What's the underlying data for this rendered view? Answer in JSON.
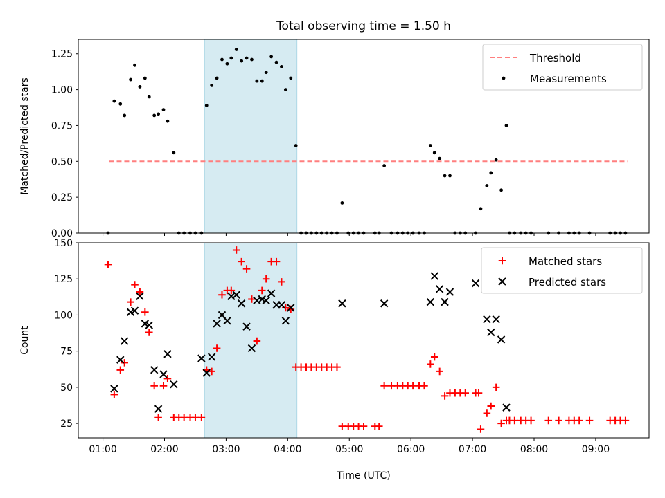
{
  "colors": {
    "shade": "#add8e6",
    "threshold": "#ff7f7f",
    "measurement": "#000000",
    "matched": "#ff0000",
    "predicted": "#000000"
  },
  "chart_data": [
    {
      "type": "scatter",
      "title": "Total observing time = 1.50 h",
      "xlabel": "",
      "ylabel": "Matched/Predicted stars",
      "xlim": [
        "00:36",
        "09:52"
      ],
      "ylim": [
        0,
        1.35
      ],
      "yticks": [
        0.0,
        0.25,
        0.5,
        0.75,
        1.0,
        1.25
      ],
      "ytick_labels": [
        "0.00",
        "0.25",
        "0.50",
        "0.75",
        "1.00",
        "1.25"
      ],
      "shaded_span": [
        "02:39",
        "04:09"
      ],
      "threshold": {
        "name": "Threshold",
        "value": 0.5,
        "x": [
          "01:06",
          "09:31"
        ]
      },
      "legend": {
        "position": "top-right",
        "entries": [
          "Threshold",
          "Measurements"
        ]
      },
      "series": [
        {
          "name": "Measurements",
          "marker": "dot",
          "points": [
            [
              "01:05",
              0.0
            ],
            [
              "01:11",
              0.92
            ],
            [
              "01:17",
              0.9
            ],
            [
              "01:21",
              0.82
            ],
            [
              "01:27",
              1.07
            ],
            [
              "01:31",
              1.17
            ],
            [
              "01:36",
              1.02
            ],
            [
              "01:41",
              1.08
            ],
            [
              "01:45",
              0.95
            ],
            [
              "01:50",
              0.82
            ],
            [
              "01:54",
              0.83
            ],
            [
              "01:59",
              0.86
            ],
            [
              "02:03",
              0.78
            ],
            [
              "02:09",
              0.56
            ],
            [
              "02:14",
              0.0
            ],
            [
              "02:19",
              0.0
            ],
            [
              "02:25",
              0.0
            ],
            [
              "02:30",
              0.0
            ],
            [
              "02:36",
              0.0
            ],
            [
              "02:41",
              0.89
            ],
            [
              "02:46",
              1.03
            ],
            [
              "02:51",
              1.08
            ],
            [
              "02:56",
              1.21
            ],
            [
              "03:01",
              1.18
            ],
            [
              "03:05",
              1.22
            ],
            [
              "03:10",
              1.28
            ],
            [
              "03:15",
              1.2
            ],
            [
              "03:20",
              1.22
            ],
            [
              "03:25",
              1.21
            ],
            [
              "03:30",
              1.06
            ],
            [
              "03:35",
              1.06
            ],
            [
              "03:39",
              1.12
            ],
            [
              "03:44",
              1.23
            ],
            [
              "03:49",
              1.19
            ],
            [
              "03:54",
              1.16
            ],
            [
              "03:58",
              1.0
            ],
            [
              "04:03",
              1.08
            ],
            [
              "04:08",
              0.61
            ],
            [
              "04:13",
              0.0
            ],
            [
              "04:18",
              0.0
            ],
            [
              "04:23",
              0.0
            ],
            [
              "04:28",
              0.0
            ],
            [
              "04:33",
              0.0
            ],
            [
              "04:38",
              0.0
            ],
            [
              "04:43",
              0.0
            ],
            [
              "04:48",
              0.0
            ],
            [
              "04:53",
              0.21
            ],
            [
              "04:59",
              0.0
            ],
            [
              "05:04",
              0.0
            ],
            [
              "05:09",
              0.0
            ],
            [
              "05:14",
              0.0
            ],
            [
              "05:25",
              0.0
            ],
            [
              "05:29",
              0.0
            ],
            [
              "05:34",
              0.47
            ],
            [
              "05:41",
              0.0
            ],
            [
              "05:47",
              0.0
            ],
            [
              "05:52",
              0.0
            ],
            [
              "05:57",
              0.0
            ],
            [
              "06:02",
              0.0
            ],
            [
              "06:08",
              0.0
            ],
            [
              "06:13",
              0.0
            ],
            [
              "06:19",
              0.61
            ],
            [
              "06:23",
              0.56
            ],
            [
              "06:28",
              0.52
            ],
            [
              "06:33",
              0.4
            ],
            [
              "06:38",
              0.4
            ],
            [
              "06:43",
              0.0
            ],
            [
              "06:48",
              0.0
            ],
            [
              "06:53",
              0.0
            ],
            [
              "07:03",
              0.0
            ],
            [
              "07:08",
              0.17
            ],
            [
              "07:14",
              0.33
            ],
            [
              "07:18",
              0.42
            ],
            [
              "07:23",
              0.51
            ],
            [
              "07:28",
              0.3
            ],
            [
              "07:33",
              0.75
            ],
            [
              "07:36",
              0.0
            ],
            [
              "07:41",
              0.0
            ],
            [
              "07:47",
              0.0
            ],
            [
              "07:52",
              0.0
            ],
            [
              "07:57",
              0.0
            ],
            [
              "08:14",
              0.0
            ],
            [
              "08:24",
              0.0
            ],
            [
              "08:34",
              0.0
            ],
            [
              "08:39",
              0.0
            ],
            [
              "08:44",
              0.0
            ],
            [
              "08:54",
              0.0
            ],
            [
              "09:14",
              0.0
            ],
            [
              "09:19",
              0.0
            ],
            [
              "09:24",
              0.0
            ],
            [
              "09:29",
              0.0
            ]
          ]
        }
      ]
    },
    {
      "type": "scatter",
      "title": "",
      "xlabel": "Time (UTC)",
      "ylabel": "Count",
      "xlim": [
        "00:36",
        "09:52"
      ],
      "ylim": [
        15,
        150
      ],
      "yticks": [
        25,
        50,
        75,
        100,
        125,
        150
      ],
      "ytick_labels": [
        "25",
        "50",
        "75",
        "100",
        "125",
        "150"
      ],
      "xticks": [
        "01:00",
        "02:00",
        "03:00",
        "04:00",
        "05:00",
        "06:00",
        "07:00",
        "08:00",
        "09:00"
      ],
      "shaded_span": [
        "02:39",
        "04:09"
      ],
      "legend": {
        "position": "top-right",
        "entries": [
          "Matched stars",
          "Predicted stars"
        ]
      },
      "series": [
        {
          "name": "Matched stars",
          "marker": "plus",
          "points": [
            [
              "01:05",
              135
            ],
            [
              "01:11",
              45
            ],
            [
              "01:17",
              62
            ],
            [
              "01:21",
              67
            ],
            [
              "01:27",
              109
            ],
            [
              "01:31",
              121
            ],
            [
              "01:36",
              116
            ],
            [
              "01:41",
              102
            ],
            [
              "01:45",
              88
            ],
            [
              "01:50",
              51
            ],
            [
              "01:54",
              29
            ],
            [
              "01:59",
              51
            ],
            [
              "02:03",
              56
            ],
            [
              "02:09",
              29
            ],
            [
              "02:14",
              29
            ],
            [
              "02:19",
              29
            ],
            [
              "02:25",
              29
            ],
            [
              "02:30",
              29
            ],
            [
              "02:36",
              29
            ],
            [
              "02:41",
              62
            ],
            [
              "02:46",
              61
            ],
            [
              "02:51",
              77
            ],
            [
              "02:56",
              114
            ],
            [
              "03:01",
              117
            ],
            [
              "03:05",
              117
            ],
            [
              "03:10",
              145
            ],
            [
              "03:15",
              137
            ],
            [
              "03:20",
              132
            ],
            [
              "03:25",
              111
            ],
            [
              "03:30",
              82
            ],
            [
              "03:35",
              117
            ],
            [
              "03:39",
              125
            ],
            [
              "03:44",
              137
            ],
            [
              "03:49",
              137
            ],
            [
              "03:54",
              123
            ],
            [
              "03:58",
              105
            ],
            [
              "04:03",
              104
            ],
            [
              "04:08",
              64
            ],
            [
              "04:13",
              64
            ],
            [
              "04:18",
              64
            ],
            [
              "04:23",
              64
            ],
            [
              "04:28",
              64
            ],
            [
              "04:33",
              64
            ],
            [
              "04:38",
              64
            ],
            [
              "04:43",
              64
            ],
            [
              "04:48",
              64
            ],
            [
              "04:53",
              23
            ],
            [
              "04:59",
              23
            ],
            [
              "05:04",
              23
            ],
            [
              "05:09",
              23
            ],
            [
              "05:14",
              23
            ],
            [
              "05:25",
              23
            ],
            [
              "05:29",
              23
            ],
            [
              "05:34",
              51
            ],
            [
              "05:41",
              51
            ],
            [
              "05:47",
              51
            ],
            [
              "05:52",
              51
            ],
            [
              "05:57",
              51
            ],
            [
              "06:02",
              51
            ],
            [
              "06:08",
              51
            ],
            [
              "06:13",
              51
            ],
            [
              "06:19",
              66
            ],
            [
              "06:23",
              71
            ],
            [
              "06:28",
              61
            ],
            [
              "06:33",
              44
            ],
            [
              "06:38",
              46
            ],
            [
              "06:43",
              46
            ],
            [
              "06:48",
              46
            ],
            [
              "06:53",
              46
            ],
            [
              "07:03",
              46
            ],
            [
              "07:06",
              46
            ],
            [
              "07:08",
              21
            ],
            [
              "07:14",
              32
            ],
            [
              "07:18",
              37
            ],
            [
              "07:23",
              50
            ],
            [
              "07:28",
              25
            ],
            [
              "07:33",
              27
            ],
            [
              "07:36",
              27
            ],
            [
              "07:41",
              27
            ],
            [
              "07:47",
              27
            ],
            [
              "07:52",
              27
            ],
            [
              "07:57",
              27
            ],
            [
              "08:14",
              27
            ],
            [
              "08:24",
              27
            ],
            [
              "08:34",
              27
            ],
            [
              "08:39",
              27
            ],
            [
              "08:44",
              27
            ],
            [
              "08:54",
              27
            ],
            [
              "09:14",
              27
            ],
            [
              "09:19",
              27
            ],
            [
              "09:24",
              27
            ],
            [
              "09:29",
              27
            ]
          ]
        },
        {
          "name": "Predicted stars",
          "marker": "x",
          "points": [
            [
              "01:11",
              49
            ],
            [
              "01:17",
              69
            ],
            [
              "01:21",
              82
            ],
            [
              "01:27",
              102
            ],
            [
              "01:31",
              103
            ],
            [
              "01:36",
              113
            ],
            [
              "01:41",
              94
            ],
            [
              "01:45",
              93
            ],
            [
              "01:50",
              62
            ],
            [
              "01:54",
              35
            ],
            [
              "01:59",
              59
            ],
            [
              "02:03",
              73
            ],
            [
              "02:09",
              52
            ],
            [
              "02:36",
              70
            ],
            [
              "02:41",
              60
            ],
            [
              "02:46",
              71
            ],
            [
              "02:51",
              94
            ],
            [
              "02:56",
              100
            ],
            [
              "03:01",
              96
            ],
            [
              "03:05",
              113
            ],
            [
              "03:10",
              114
            ],
            [
              "03:15",
              108
            ],
            [
              "03:20",
              92
            ],
            [
              "03:25",
              77
            ],
            [
              "03:30",
              110
            ],
            [
              "03:35",
              111
            ],
            [
              "03:39",
              110
            ],
            [
              "03:44",
              115
            ],
            [
              "03:49",
              107
            ],
            [
              "03:54",
              107
            ],
            [
              "03:58",
              96
            ],
            [
              "04:03",
              105
            ],
            [
              "04:53",
              108
            ],
            [
              "05:34",
              108
            ],
            [
              "06:19",
              109
            ],
            [
              "06:23",
              127
            ],
            [
              "06:28",
              118
            ],
            [
              "06:33",
              109
            ],
            [
              "06:38",
              116
            ],
            [
              "07:03",
              122
            ],
            [
              "07:14",
              97
            ],
            [
              "07:18",
              88
            ],
            [
              "07:23",
              97
            ],
            [
              "07:28",
              83
            ],
            [
              "07:33",
              36
            ]
          ]
        }
      ]
    }
  ]
}
